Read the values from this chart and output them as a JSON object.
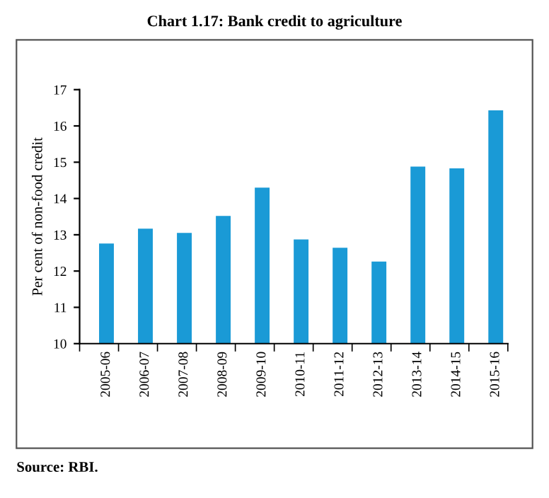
{
  "chart_data": {
    "type": "bar",
    "title": "Chart 1.17: Bank credit to agriculture",
    "ylabel": "Per cent of non-food credit",
    "categories": [
      "2005-06",
      "2006-07",
      "2007-08",
      "2008-09",
      "2009-10",
      "2010-11",
      "2011-12",
      "2012-13",
      "2013-14",
      "2014-15",
      "2015-16"
    ],
    "values": [
      12.76,
      13.17,
      13.05,
      13.52,
      14.3,
      12.87,
      12.64,
      12.26,
      14.88,
      14.83,
      16.43
    ],
    "color": "#1a9ad6",
    "ylim": [
      10,
      17
    ],
    "yticks": [
      10,
      11,
      12,
      13,
      14,
      15,
      16,
      17
    ],
    "grid": false,
    "annotations": [
      "Source: RBI."
    ]
  }
}
